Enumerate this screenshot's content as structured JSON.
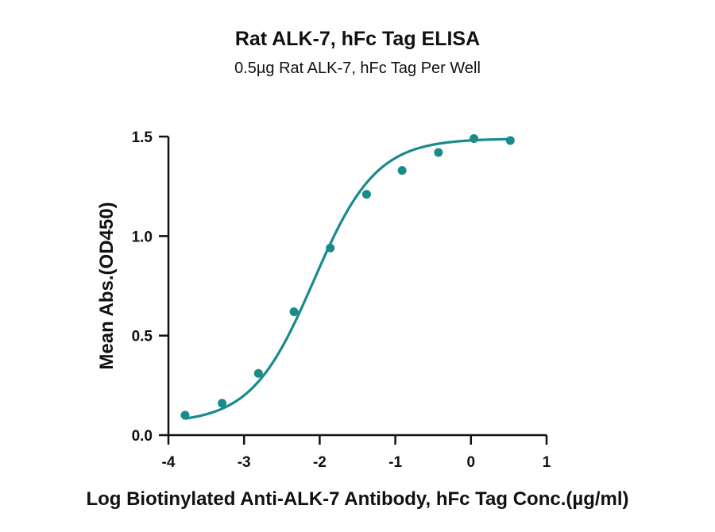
{
  "chart_data": {
    "type": "scatter",
    "title": "Rat ALK-7, hFc Tag ELISA",
    "subtitle": "0.5µg Rat ALK-7, hFc Tag Per Well",
    "xlabel": "Log Biotinylated Anti-ALK-7 Antibody, hFc Tag Conc.(µg/ml)",
    "ylabel": "Mean Abs.(OD450)",
    "xlim": [
      -4,
      1
    ],
    "ylim": [
      0,
      1.5
    ],
    "x_ticks": [
      -4,
      -3,
      -2,
      -1,
      0,
      1
    ],
    "y_ticks": [
      0.0,
      0.5,
      1.0,
      1.5
    ],
    "x_tick_labels": [
      "-4",
      "-3",
      "-2",
      "-1",
      "0",
      "1"
    ],
    "y_tick_labels": [
      "0.0",
      "0.5",
      "1.0",
      "1.5"
    ],
    "color": "#1a8a8a",
    "series": [
      {
        "points": [
          {
            "x": -3.78,
            "y": 0.1
          },
          {
            "x": -3.29,
            "y": 0.16
          },
          {
            "x": -2.81,
            "y": 0.31
          },
          {
            "x": -2.34,
            "y": 0.62
          },
          {
            "x": -1.86,
            "y": 0.94
          },
          {
            "x": -1.38,
            "y": 1.21
          },
          {
            "x": -0.91,
            "y": 1.33
          },
          {
            "x": -0.43,
            "y": 1.42
          },
          {
            "x": 0.04,
            "y": 1.49
          },
          {
            "x": 0.52,
            "y": 1.48
          }
        ],
        "fit": {
          "model": "4PL",
          "bottom": 0.06,
          "top": 1.49,
          "logEC50": -2.08,
          "hill": 1.05
        }
      }
    ],
    "grid": false,
    "legend": "none"
  }
}
